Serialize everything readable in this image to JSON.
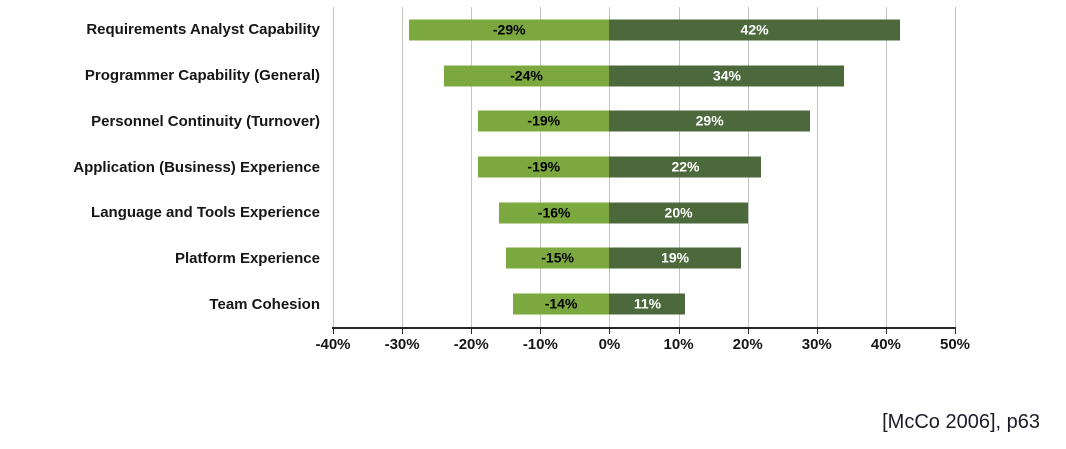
{
  "chart_data": {
    "type": "bar",
    "variant": "horizontal-diverging",
    "title": "",
    "categories": [
      "Requirements Analyst Capability",
      "Programmer Capability (General)",
      "Personnel Continuity (Turnover)",
      "Application (Business) Experience",
      "Language and Tools Experience",
      "Platform Experience",
      "Team Cohesion"
    ],
    "series": [
      {
        "name": "negative-impact",
        "values": [
          -29,
          -24,
          -19,
          -19,
          -16,
          -15,
          -14
        ],
        "labels": [
          "-29%",
          "-24%",
          "-19%",
          "-19%",
          "-16%",
          "-15%",
          "-14%"
        ],
        "color": "#7BA83F",
        "label_color": "#000000"
      },
      {
        "name": "positive-impact",
        "values": [
          42,
          34,
          29,
          22,
          20,
          19,
          11
        ],
        "labels": [
          "42%",
          "34%",
          "29%",
          "22%",
          "20%",
          "19%",
          "11%"
        ],
        "color": "#4C693C",
        "label_color": "#ffffff"
      }
    ],
    "xlim": [
      -40,
      50
    ],
    "xtick_values": [
      -40,
      -30,
      -20,
      -10,
      0,
      10,
      20,
      30,
      40,
      50
    ],
    "xtick_labels": [
      "-40%",
      "-30%",
      "-20%",
      "-10%",
      "0%",
      "10%",
      "20%",
      "30%",
      "40%",
      "50%"
    ],
    "grid": true,
    "legend": "none"
  },
  "footer": {
    "citation": "[McCo 2006], p63"
  }
}
